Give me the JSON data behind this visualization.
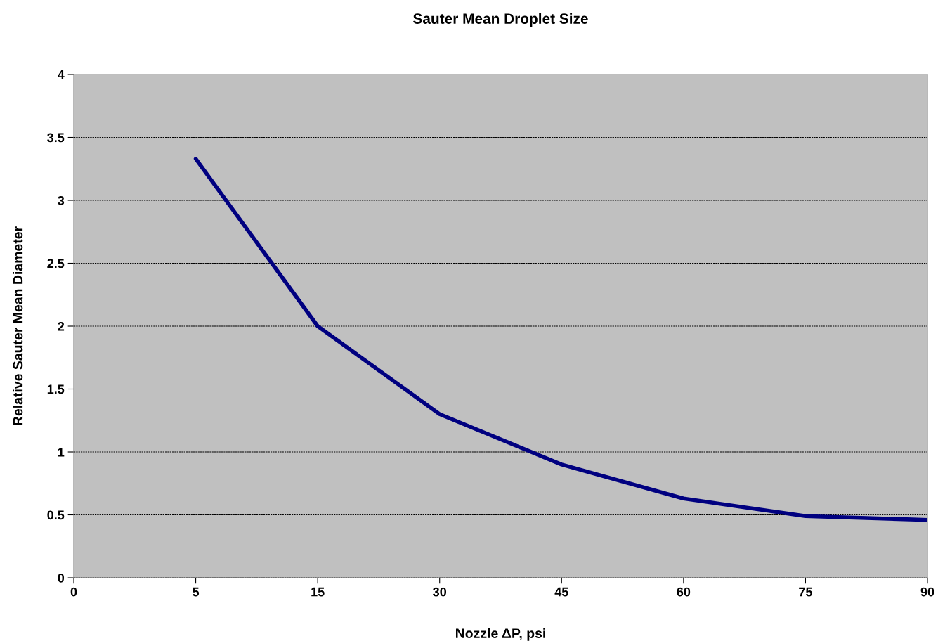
{
  "chart_data": {
    "type": "line",
    "title": "Sauter Mean Droplet Size",
    "xlabel": "Nozzle ΔP, psi",
    "ylabel": "Relative Sauter Mean Diameter",
    "categories": [
      "0",
      "5",
      "15",
      "30",
      "45",
      "60",
      "75",
      "90"
    ],
    "series": [
      {
        "color": "#000080",
        "values": [
          null,
          3.33,
          2.0,
          1.3,
          0.9,
          0.63,
          0.49,
          0.46
        ]
      }
    ],
    "ylim": [
      0,
      4
    ],
    "yticks": [
      0,
      0.5,
      1,
      1.5,
      2,
      2.5,
      3,
      3.5,
      4
    ],
    "grid": "y",
    "marker": "none",
    "line_style": "solid"
  }
}
